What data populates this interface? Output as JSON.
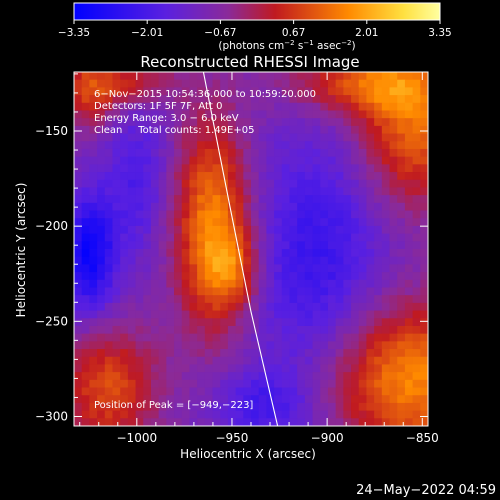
{
  "chart_data": {
    "type": "heatmap",
    "title": "Reconstructed RHESSI Image",
    "xlabel": "Heliocentric X (arcsec)",
    "ylabel": "Heliocentric Y (arcsec)",
    "xlim": [
      -1033,
      -847
    ],
    "ylim": [
      -305,
      -119
    ],
    "x_ticks": [
      -1000,
      -950,
      -900,
      -850
    ],
    "x_tick_labels": [
      "−1000",
      "−950",
      "−900",
      "−850"
    ],
    "y_ticks": [
      -150,
      -200,
      -250,
      -300
    ],
    "y_tick_labels": [
      "−150",
      "−200",
      "−250",
      "−300"
    ],
    "colorbar": {
      "ticks": [
        -3.35,
        -2.01,
        -0.67,
        0.67,
        2.01,
        3.35
      ],
      "tick_labels": [
        "−3.35",
        "−2.01",
        "−0.67",
        "0.67",
        "2.01",
        "3.35"
      ],
      "unit_text": "(photons cm",
      "unit_sup1": "−2",
      "unit_mid1": " s",
      "unit_sup2": "−1",
      "unit_mid2": " asec",
      "unit_sup3": "−2",
      "unit_end": ")"
    },
    "annotations": [
      "6−Nov−2015 10:54:36.000 to 10:59:20.000",
      "Detectors: 1F 5F 7F, Att 0",
      "Energy Range: 3.0 − 6.0 keV",
      "Clean     Total counts: 1.49E+05"
    ],
    "peak_label": "Position of Peak = [−949,−223]",
    "peak": [
      -949,
      -223
    ],
    "limb_curve": [
      [
        -965,
        -119
      ],
      [
        -951,
        -190
      ],
      [
        -940,
        -245
      ],
      [
        -926,
        -305
      ]
    ],
    "sources": [
      {
        "x": -960,
        "y": -200,
        "sx": 14,
        "sy": 38,
        "amp": 2.6
      },
      {
        "x": -949,
        "y": -223,
        "sx": 10,
        "sy": 14,
        "amp": 1.3
      },
      {
        "x": -1015,
        "y": -285,
        "sx": 18,
        "sy": 22,
        "amp": 1.8
      },
      {
        "x": -858,
        "y": -280,
        "sx": 30,
        "sy": 28,
        "amp": 2.6
      },
      {
        "x": -855,
        "y": -150,
        "sx": 20,
        "sy": 28,
        "amp": 2.1
      },
      {
        "x": -880,
        "y": -125,
        "sx": 28,
        "sy": 12,
        "amp": 1.9
      },
      {
        "x": -1025,
        "y": -128,
        "sx": 12,
        "sy": 14,
        "amp": 1.6
      },
      {
        "x": -1000,
        "y": -125,
        "sx": 16,
        "sy": 8,
        "amp": 1.2
      },
      {
        "x": -1025,
        "y": -215,
        "sx": 10,
        "sy": 22,
        "amp": -2.2
      },
      {
        "x": -1000,
        "y": -175,
        "sx": 12,
        "sy": 30,
        "amp": -1.0
      },
      {
        "x": -905,
        "y": -220,
        "sx": 26,
        "sy": 50,
        "amp": -1.4
      },
      {
        "x": -935,
        "y": -295,
        "sx": 18,
        "sy": 14,
        "amp": -1.1
      }
    ],
    "base_level": -0.9,
    "timestamp": "24−May−2022 04:59"
  }
}
